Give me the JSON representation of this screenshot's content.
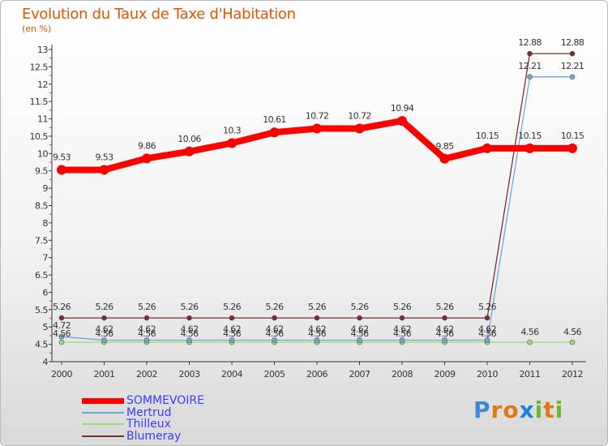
{
  "title": "Evolution du Taux de Taxe d'Habitation",
  "subtitle": "(en %)",
  "logo": {
    "letters": [
      "P",
      "r",
      "o",
      "x",
      "i",
      "t",
      "i"
    ],
    "colors": [
      "#3a8ad8",
      "#e07b12",
      "#e07b12",
      "#1f7fd6",
      "#6cb82a",
      "#e07b12",
      "#6cb82a"
    ]
  },
  "chart_data": {
    "type": "line",
    "title": "Evolution du Taux de Taxe d'Habitation",
    "ylabel": "(en %)",
    "xlabel": "",
    "x": [
      "2000",
      "2001",
      "2002",
      "2003",
      "2004",
      "2005",
      "2006",
      "2007",
      "2008",
      "2009",
      "2010",
      "2011",
      "2012"
    ],
    "ylim": [
      4,
      13
    ],
    "yticks": [
      "4",
      "4.5",
      "5",
      "5.5",
      "6",
      "6.5",
      "7",
      "7.5",
      "8",
      "8.5",
      "9",
      "9.5",
      "10",
      "10.5",
      "11",
      "11.5",
      "12",
      "12.5",
      "13"
    ],
    "grid": false,
    "legend_position": "bottom-left",
    "series": [
      {
        "name": "SOMMEVOIRE",
        "color": "#ff0000",
        "values": [
          9.53,
          9.53,
          9.86,
          10.06,
          10.3,
          10.61,
          10.72,
          10.72,
          10.94,
          9.85,
          10.15,
          10.15,
          10.15
        ],
        "labels": [
          "9.53",
          "9.53",
          "9.86",
          "10.06",
          "10.3",
          "10.61",
          "10.72",
          "10.72",
          "10.94",
          "9.85",
          "10.15",
          "10.15",
          "10.15"
        ]
      },
      {
        "name": "Mertrud",
        "color": "#6fa8d8",
        "values": [
          4.72,
          4.62,
          4.62,
          4.62,
          4.62,
          4.62,
          4.62,
          4.62,
          4.62,
          4.62,
          4.62,
          12.21,
          12.21
        ],
        "labels": [
          "4.72",
          "4.62",
          "4.62",
          "4.62",
          "4.62",
          "4.62",
          "4.62",
          "4.62",
          "4.62",
          "4.62",
          "4.62",
          "12.21",
          "12.21"
        ]
      },
      {
        "name": "Thilleux",
        "color": "#99dd77",
        "values": [
          4.56,
          4.56,
          4.56,
          4.56,
          4.56,
          4.56,
          4.56,
          4.56,
          4.56,
          4.56,
          4.56,
          4.56,
          4.56
        ],
        "labels": [
          "4.56",
          "4.56",
          "4.56",
          "4.56",
          "4.56",
          "4.56",
          "4.56",
          "4.56",
          "4.56",
          "4.56",
          "4.56",
          "4.56",
          "4.56"
        ]
      },
      {
        "name": "Blumeray",
        "color": "#7a2e2e",
        "values": [
          5.26,
          5.26,
          5.26,
          5.26,
          5.26,
          5.26,
          5.26,
          5.26,
          5.26,
          5.26,
          5.26,
          12.88,
          12.88
        ],
        "labels": [
          "5.26",
          "5.26",
          "5.26",
          "5.26",
          "5.26",
          "5.26",
          "5.26",
          "5.26",
          "5.26",
          "5.26",
          "5.26",
          "12.88",
          "12.88"
        ]
      }
    ]
  }
}
